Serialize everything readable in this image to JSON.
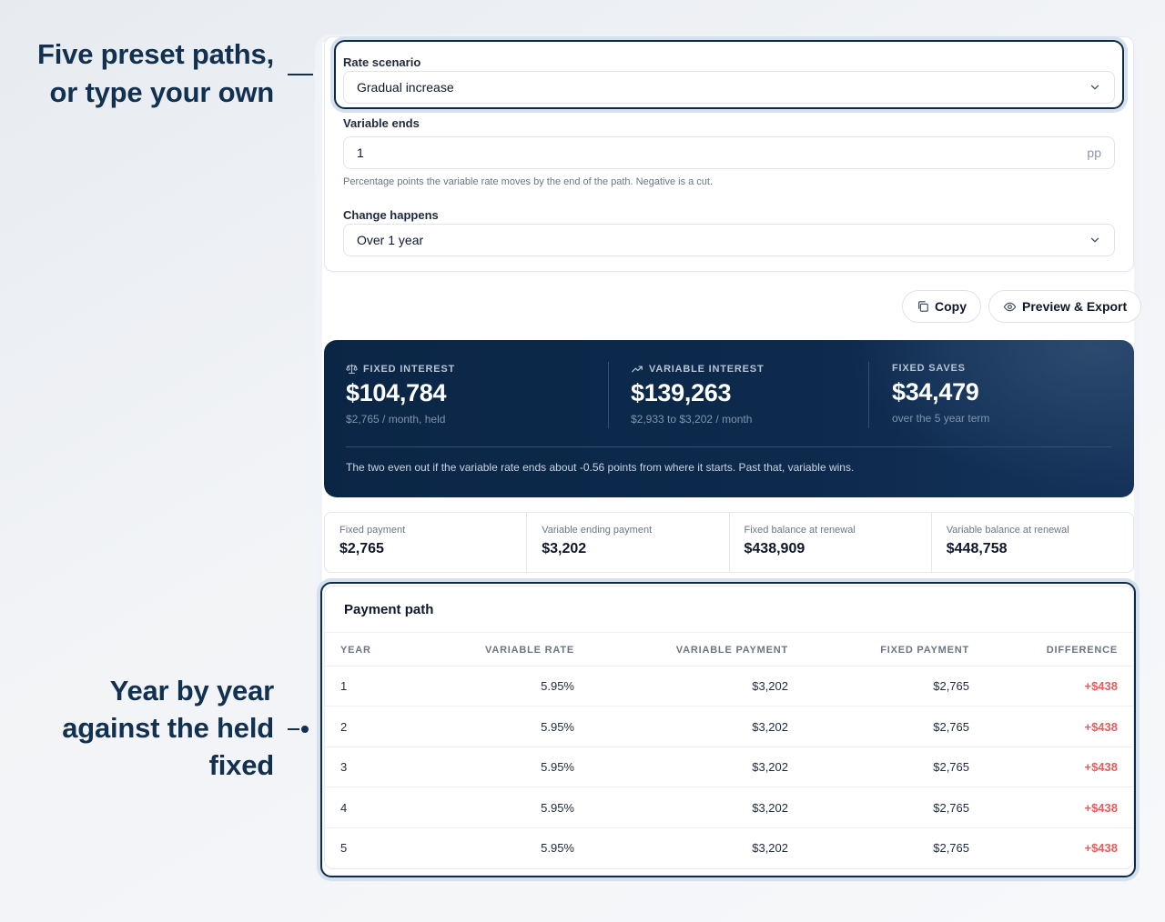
{
  "callouts": {
    "top": [
      "Five preset paths,",
      "or type your own"
    ],
    "bottom": [
      "Year by year",
      "against the held",
      "fixed"
    ]
  },
  "settings": {
    "rate_scenario": {
      "label": "Rate scenario",
      "value": "Gradual increase"
    },
    "variable_ends": {
      "label": "Variable ends",
      "value": "1",
      "suffix": "pp",
      "help": "Percentage points the variable rate moves by the end of the path. Negative is a cut."
    },
    "change_happens": {
      "label": "Change happens",
      "value": "Over 1 year"
    }
  },
  "actions": {
    "copy": "Copy",
    "preview_export": "Preview & Export"
  },
  "summary": {
    "fixed": {
      "label": "FIXED INTEREST",
      "value": "$104,784",
      "sub": "$2,765 / month, held",
      "icon": "scale-icon"
    },
    "variable": {
      "label": "VARIABLE INTEREST",
      "value": "$139,263",
      "sub": "$2,933 to $3,202 / month",
      "icon": "trending-up-icon"
    },
    "saves": {
      "label": "FIXED SAVES",
      "value": "$34,479",
      "sub": "over the 5 year term"
    },
    "note": "The two even out if the variable rate ends about -0.56 points from where it starts. Past that, variable wins."
  },
  "metrics": [
    {
      "label": "Fixed payment",
      "value": "$2,765"
    },
    {
      "label": "Variable ending payment",
      "value": "$3,202"
    },
    {
      "label": "Fixed balance at renewal",
      "value": "$438,909"
    },
    {
      "label": "Variable balance at renewal",
      "value": "$448,758"
    }
  ],
  "table": {
    "title": "Payment path",
    "headers": [
      "YEAR",
      "VARIABLE RATE",
      "VARIABLE PAYMENT",
      "FIXED PAYMENT",
      "DIFFERENCE"
    ],
    "rows": [
      [
        "1",
        "5.95%",
        "$3,202",
        "$2,765",
        "+$438"
      ],
      [
        "2",
        "5.95%",
        "$3,202",
        "$2,765",
        "+$438"
      ],
      [
        "3",
        "5.95%",
        "$3,202",
        "$2,765",
        "+$438"
      ],
      [
        "4",
        "5.95%",
        "$3,202",
        "$2,765",
        "+$438"
      ],
      [
        "5",
        "5.95%",
        "$3,202",
        "$2,765",
        "+$438"
      ]
    ]
  },
  "colors": {
    "navy": "#0b2645",
    "accent_text": "#12304f",
    "difference": "#e35d5d"
  }
}
